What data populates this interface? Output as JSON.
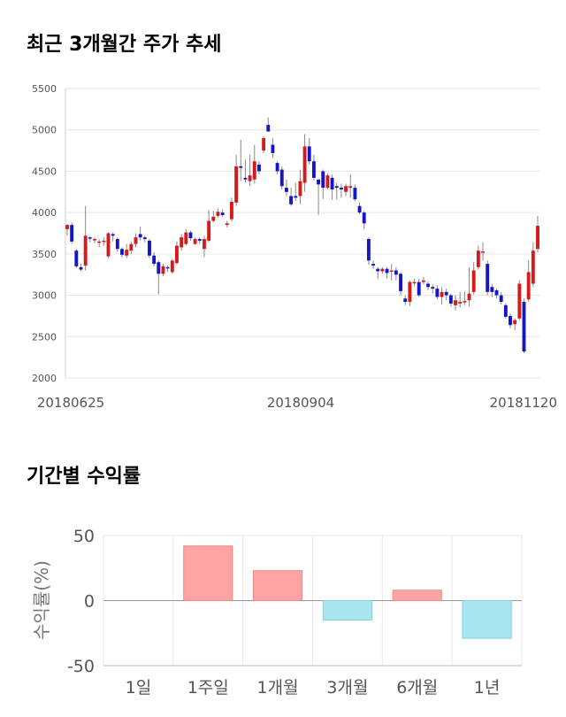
{
  "sections": {
    "price_title": "최근 3개월간 주가 추세",
    "returns_title": "기간별 수익률"
  },
  "chart_data": [
    {
      "type": "candlestick",
      "title": "최근 3개월간 주가 추세",
      "ylim": [
        2000,
        5500
      ],
      "y_ticks": [
        2000,
        2500,
        3000,
        3500,
        4000,
        4500,
        5000,
        5500
      ],
      "x_tick_labels": [
        "20180625",
        "20180904",
        "20181120"
      ],
      "grid": true,
      "colors": {
        "up": "#d7191c",
        "down": "#1414c8",
        "wick": "#888888"
      },
      "candles": [
        [
          3800,
          3850,
          3720,
          3860
        ],
        [
          3850,
          3650,
          3620,
          3880
        ],
        [
          3540,
          3350,
          3330,
          3560
        ],
        [
          3340,
          3310,
          3290,
          3380
        ],
        [
          3360,
          3720,
          3300,
          4080
        ],
        [
          3700,
          3690,
          3640,
          3720
        ],
        [
          3680,
          3680,
          3630,
          3700
        ],
        [
          3640,
          3650,
          3580,
          3680
        ],
        [
          3660,
          3660,
          3600,
          3700
        ],
        [
          3470,
          3750,
          3450,
          3760
        ],
        [
          3740,
          3720,
          3650,
          3760
        ],
        [
          3680,
          3560,
          3530,
          3700
        ],
        [
          3560,
          3490,
          3460,
          3580
        ],
        [
          3480,
          3550,
          3450,
          3620
        ],
        [
          3540,
          3620,
          3500,
          3650
        ],
        [
          3620,
          3700,
          3580,
          3750
        ],
        [
          3740,
          3700,
          3660,
          3830
        ],
        [
          3700,
          3680,
          3640,
          3720
        ],
        [
          3660,
          3480,
          3450,
          3680
        ],
        [
          3480,
          3380,
          3350,
          3520
        ],
        [
          3400,
          3260,
          3010,
          3420
        ],
        [
          3260,
          3350,
          3230,
          3380
        ],
        [
          3340,
          3330,
          3280,
          3360
        ],
        [
          3280,
          3420,
          3260,
          3440
        ],
        [
          3390,
          3600,
          3370,
          3650
        ],
        [
          3580,
          3700,
          3540,
          3740
        ],
        [
          3620,
          3760,
          3600,
          3800
        ],
        [
          3760,
          3690,
          3660,
          3780
        ],
        [
          3620,
          3680,
          3610,
          3700
        ],
        [
          3680,
          3660,
          3620,
          3700
        ],
        [
          3560,
          3680,
          3460,
          3720
        ],
        [
          3660,
          3900,
          3640,
          4030
        ],
        [
          3900,
          3950,
          3880,
          4020
        ],
        [
          3960,
          4010,
          3940,
          4050
        ],
        [
          4000,
          3970,
          3950,
          4040
        ],
        [
          3850,
          3870,
          3820,
          3900
        ],
        [
          3920,
          4130,
          3890,
          4180
        ],
        [
          4120,
          4560,
          4080,
          4700
        ],
        [
          4560,
          4540,
          4380,
          4880
        ],
        [
          4420,
          4400,
          4360,
          4640
        ],
        [
          4380,
          4450,
          4320,
          4700
        ],
        [
          4400,
          4620,
          4350,
          4820
        ],
        [
          4580,
          4500,
          4460,
          4620
        ],
        [
          4750,
          4900,
          4720,
          4920
        ],
        [
          5060,
          4980,
          4980,
          5150
        ],
        [
          4820,
          4720,
          4660,
          4900
        ],
        [
          4600,
          4500,
          4460,
          4620
        ],
        [
          4520,
          4320,
          4280,
          4560
        ],
        [
          4300,
          4250,
          4200,
          4400
        ],
        [
          4200,
          4100,
          4080,
          4300
        ],
        [
          4200,
          4180,
          4140,
          4360
        ],
        [
          4200,
          4380,
          4100,
          4520
        ],
        [
          4360,
          4800,
          4250,
          4950
        ],
        [
          4800,
          4620,
          4580,
          4900
        ],
        [
          4620,
          4420,
          4390,
          4700
        ],
        [
          4400,
          4340,
          3970,
          4400
        ],
        [
          4500,
          4300,
          4160,
          4520
        ],
        [
          4300,
          4450,
          4280,
          4470
        ],
        [
          4420,
          4280,
          4150,
          4460
        ],
        [
          4320,
          4300,
          4160,
          4360
        ],
        [
          4300,
          4280,
          4180,
          4350
        ],
        [
          4250,
          4320,
          4200,
          4350
        ],
        [
          4300,
          4320,
          4180,
          4460
        ],
        [
          4300,
          4160,
          4140,
          4340
        ],
        [
          4080,
          4000,
          3980,
          4120
        ],
        [
          4000,
          3870,
          3800,
          4020
        ],
        [
          3680,
          3420,
          3370,
          3700
        ],
        [
          3380,
          3360,
          3320,
          3420
        ],
        [
          3320,
          3290,
          3200,
          3340
        ],
        [
          3290,
          3320,
          3260,
          3340
        ],
        [
          3320,
          3270,
          3200,
          3340
        ],
        [
          3300,
          3300,
          3180,
          3380
        ],
        [
          3300,
          3250,
          3180,
          3340
        ],
        [
          3260,
          3050,
          3000,
          3280
        ],
        [
          2960,
          2920,
          2880,
          3000
        ],
        [
          2920,
          3160,
          2870,
          3180
        ],
        [
          3150,
          3160,
          3110,
          3200
        ],
        [
          3160,
          3000,
          2980,
          3200
        ],
        [
          3160,
          3180,
          3130,
          3220
        ],
        [
          3140,
          3100,
          3060,
          3170
        ],
        [
          3100,
          3080,
          3020,
          3130
        ],
        [
          3080,
          2980,
          2950,
          3120
        ],
        [
          2980,
          3040,
          2890,
          3100
        ],
        [
          3040,
          3000,
          2940,
          3080
        ],
        [
          3000,
          2900,
          2860,
          3020
        ],
        [
          2880,
          2940,
          2820,
          3000
        ],
        [
          2900,
          2920,
          2850,
          3040
        ],
        [
          2920,
          2930,
          2880,
          3050
        ],
        [
          2940,
          3020,
          2860,
          3340
        ],
        [
          3040,
          3300,
          3010,
          3400
        ],
        [
          3340,
          3540,
          3310,
          3600
        ],
        [
          3520,
          3530,
          3420,
          3640
        ],
        [
          3380,
          3040,
          3000,
          3420
        ],
        [
          3100,
          3040,
          2980,
          3140
        ],
        [
          3060,
          3000,
          2960,
          3080
        ],
        [
          3000,
          2920,
          2890,
          3040
        ],
        [
          2880,
          2740,
          2720,
          2900
        ],
        [
          2750,
          2640,
          2600,
          2780
        ],
        [
          2650,
          2700,
          2580,
          2720
        ],
        [
          2720,
          3140,
          2700,
          3180
        ],
        [
          2920,
          2320,
          2300,
          2960
        ],
        [
          2950,
          3280,
          2920,
          3420
        ],
        [
          3140,
          3540,
          3100,
          3640
        ],
        [
          3560,
          3840,
          3520,
          3960
        ]
      ]
    },
    {
      "type": "bar",
      "categories": [
        "1일",
        "1주일",
        "1개월",
        "3개월",
        "6개월",
        "1년"
      ],
      "values": [
        0,
        42,
        23,
        -15,
        8,
        -29
      ],
      "ylabel": "수익률(%)",
      "ylim": [
        -50,
        50
      ],
      "y_ticks": [
        50,
        0,
        -50
      ],
      "grid": true,
      "colors": {
        "positive": "#ffa3a3",
        "negative": "#a8e6f0"
      }
    }
  ]
}
